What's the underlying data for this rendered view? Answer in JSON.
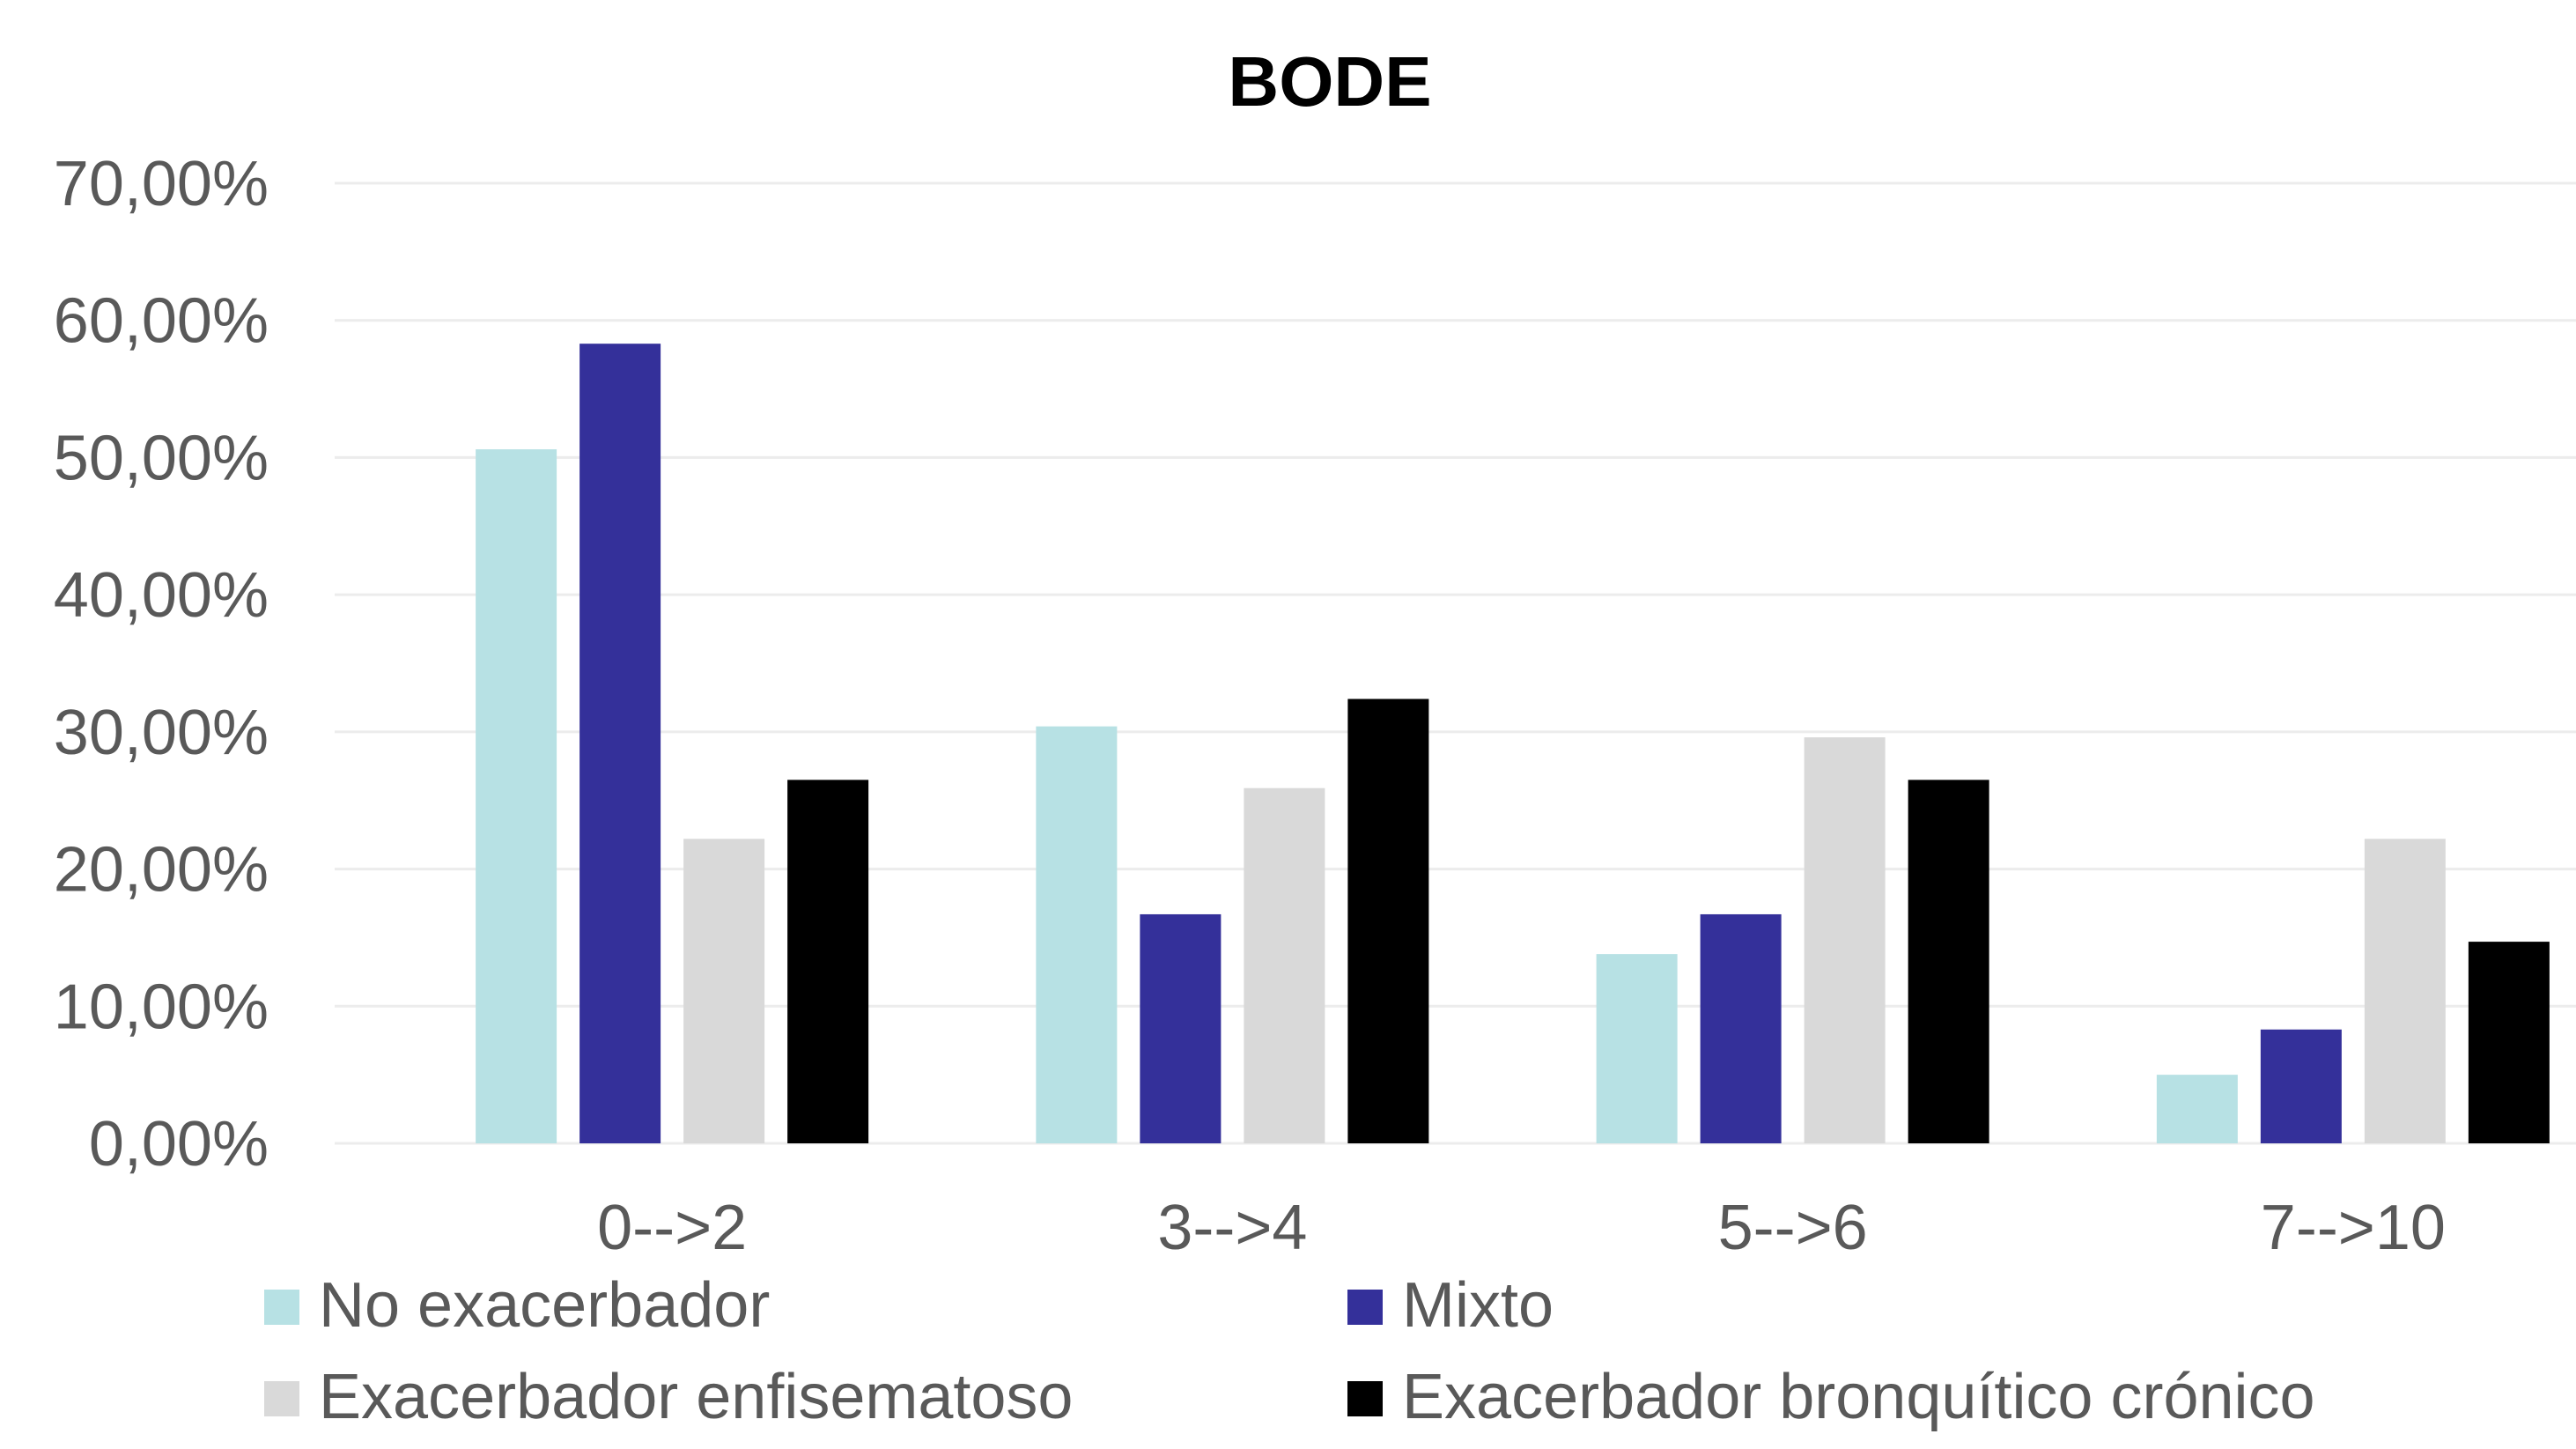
{
  "chart_data": {
    "type": "bar",
    "title": "BODE",
    "xlabel": "",
    "ylabel": "",
    "categories": [
      "0-->2",
      "3-->4",
      "5-->6",
      "7-->10"
    ],
    "series": [
      {
        "name": "No exacerbador",
        "color": "#b7e1e4",
        "values": [
          50.6,
          30.4,
          13.8,
          5.0
        ]
      },
      {
        "name": "Mixto",
        "color": "#34309a",
        "values": [
          58.3,
          16.7,
          16.7,
          8.3
        ]
      },
      {
        "name": "Exacerbador enfisematoso",
        "color": "#d9d9d9",
        "values": [
          22.2,
          25.9,
          29.6,
          22.2
        ]
      },
      {
        "name": "Exacerbador bronquítico crónico",
        "color": "#000000",
        "values": [
          26.5,
          32.4,
          26.5,
          14.7
        ]
      }
    ],
    "ylim": [
      0,
      70
    ],
    "yticks": [
      0,
      10,
      20,
      30,
      40,
      50,
      60,
      70
    ],
    "ytick_labels": [
      "0,00%",
      "10,00%",
      "20,00%",
      "30,00%",
      "40,00%",
      "50,00%",
      "60,00%",
      "70,00%"
    ],
    "grid": true,
    "gridline_color": "#ececec",
    "legend_placement": "bottom"
  }
}
